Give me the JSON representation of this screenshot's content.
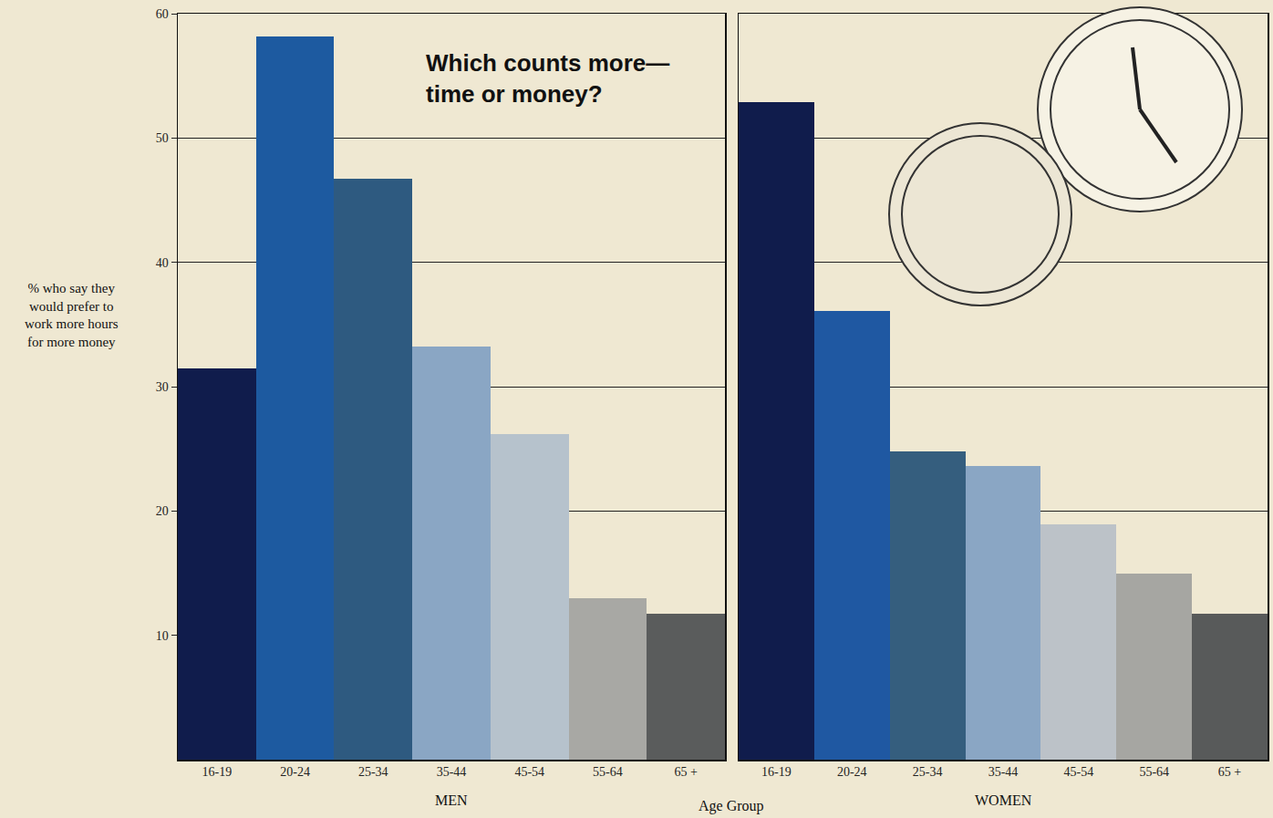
{
  "chart_data": {
    "type": "bar",
    "title": "Which counts more— time or money?",
    "y_label": "% who say they would prefer to work more hours for more money",
    "x_label": "Age Group",
    "ylim": [
      0,
      60
    ],
    "yticks": [
      10,
      20,
      30,
      40,
      50,
      60
    ],
    "grid": true,
    "panels": [
      {
        "label": "MEN",
        "categories": [
          "16-19",
          "20-24",
          "25-34",
          "35-44",
          "45-54",
          "55-64",
          "65 +"
        ],
        "values": [
          31.5,
          58.2,
          46.7,
          33.2,
          26.2,
          13.0,
          11.7
        ],
        "colors": [
          "#101c4c",
          "#1d5aa0",
          "#2e5a80",
          "#8aa6c4",
          "#b6c2cc",
          "#a8a8a4",
          "#5a5c5c"
        ]
      },
      {
        "label": "WOMEN",
        "categories": [
          "16-19",
          "20-24",
          "25-34",
          "35-44",
          "45-54",
          "55-64",
          "65 +"
        ],
        "values": [
          52.9,
          36.1,
          24.8,
          23.6,
          18.9,
          15.0,
          11.7
        ],
        "colors": [
          "#101c4c",
          "#1f58a2",
          "#355e7e",
          "#8aa6c4",
          "#bcc2c8",
          "#a6a6a2",
          "#585a5a"
        ]
      }
    ]
  }
}
